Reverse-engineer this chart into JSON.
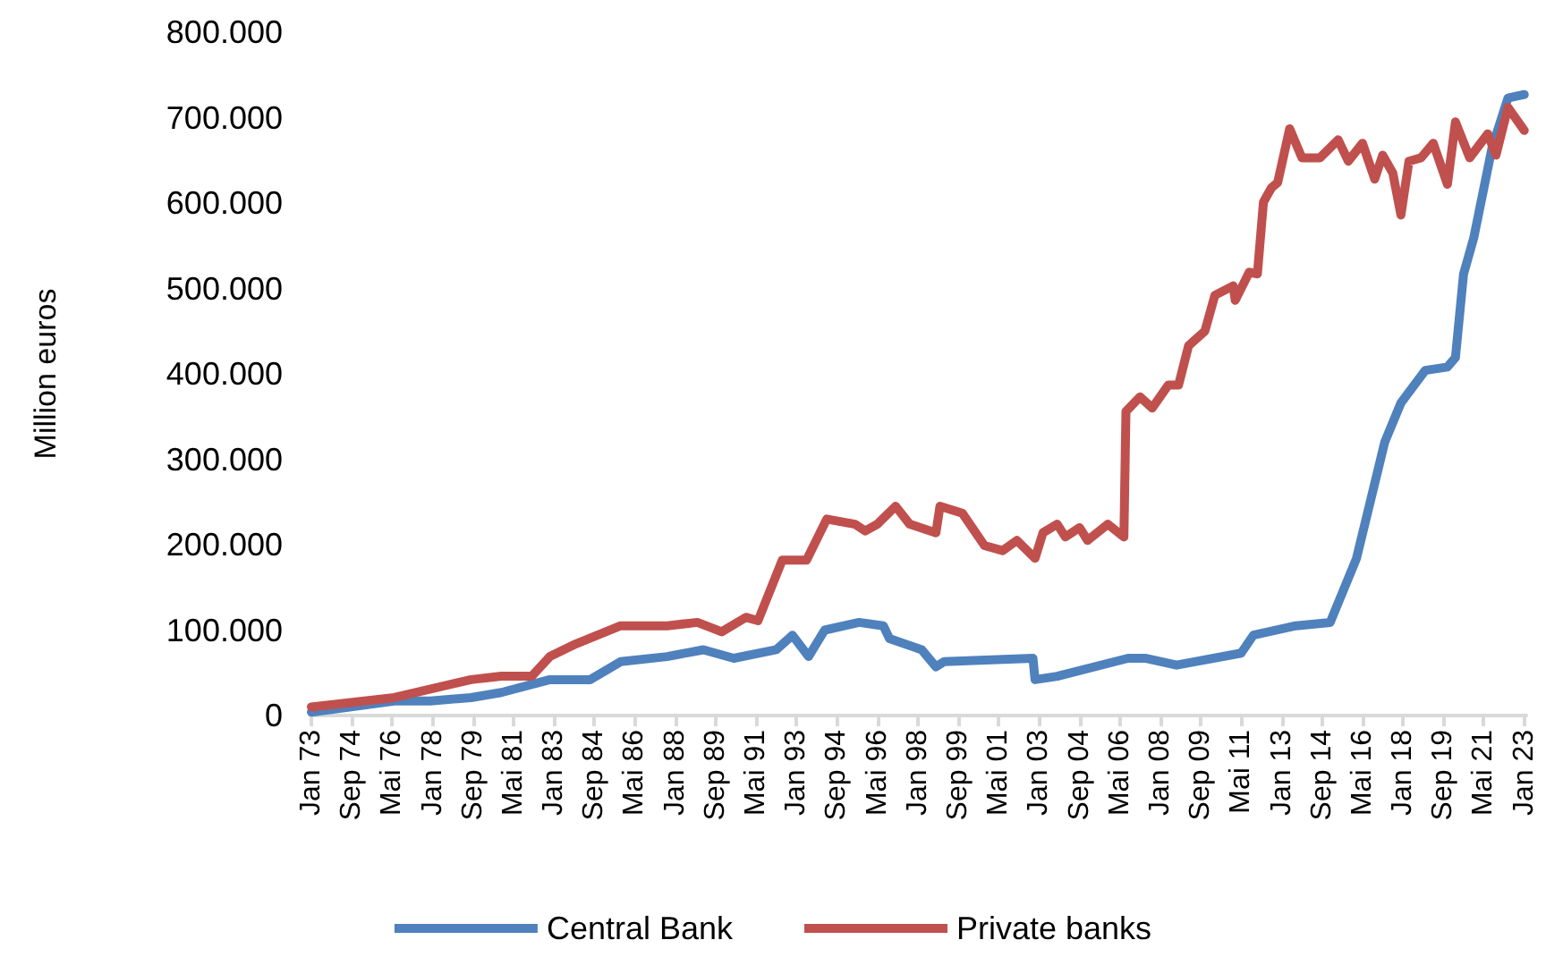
{
  "chart_data": {
    "type": "line",
    "ylabel": "Million euros",
    "legend": "bottom",
    "grid": false,
    "marker": "none",
    "line_style": "solid",
    "xlim": [
      "1973-01",
      "2023-02"
    ],
    "xticks": [
      {
        "value": "1973-01",
        "label": "Jan 73"
      },
      {
        "value": "1974-09",
        "label": "Sep 74"
      },
      {
        "value": "1976-05",
        "label": "Mai 76"
      },
      {
        "value": "1978-01",
        "label": "Jan 78"
      },
      {
        "value": "1979-09",
        "label": "Sep 79"
      },
      {
        "value": "1981-05",
        "label": "Mai 81"
      },
      {
        "value": "1983-01",
        "label": "Jan 83"
      },
      {
        "value": "1984-09",
        "label": "Sep 84"
      },
      {
        "value": "1986-05",
        "label": "Mai 86"
      },
      {
        "value": "1988-01",
        "label": "Jan 88"
      },
      {
        "value": "1989-09",
        "label": "Sep 89"
      },
      {
        "value": "1991-05",
        "label": "Mai 91"
      },
      {
        "value": "1993-01",
        "label": "Jan 93"
      },
      {
        "value": "1994-09",
        "label": "Sep 94"
      },
      {
        "value": "1996-05",
        "label": "Mai 96"
      },
      {
        "value": "1998-01",
        "label": "Jan 98"
      },
      {
        "value": "1999-09",
        "label": "Sep 99"
      },
      {
        "value": "2001-05",
        "label": "Mai 01"
      },
      {
        "value": "2003-01",
        "label": "Jan 03"
      },
      {
        "value": "2004-09",
        "label": "Sep 04"
      },
      {
        "value": "2006-05",
        "label": "Mai 06"
      },
      {
        "value": "2008-01",
        "label": "Jan 08"
      },
      {
        "value": "2009-09",
        "label": "Sep 09"
      },
      {
        "value": "2011-05",
        "label": "Mai 11"
      },
      {
        "value": "2013-01",
        "label": "Jan 13"
      },
      {
        "value": "2014-09",
        "label": "Sep 14"
      },
      {
        "value": "2016-05",
        "label": "Mai 16"
      },
      {
        "value": "2018-01",
        "label": "Jan 18"
      },
      {
        "value": "2019-09",
        "label": "Sep 19"
      },
      {
        "value": "2021-05",
        "label": "Mai 21"
      },
      {
        "value": "2023-01",
        "label": "Jan 23"
      }
    ],
    "ylim": [
      0,
      800000
    ],
    "yticks": [
      {
        "value": 0,
        "label": "0"
      },
      {
        "value": 100000,
        "label": "100.000"
      },
      {
        "value": 200000,
        "label": "200.000"
      },
      {
        "value": 300000,
        "label": "300.000"
      },
      {
        "value": 400000,
        "label": "400.000"
      },
      {
        "value": 500000,
        "label": "500.000"
      },
      {
        "value": 600000,
        "label": "600.000"
      },
      {
        "value": 700000,
        "label": "700.000"
      },
      {
        "value": 800000,
        "label": "800.000"
      }
    ],
    "series": [
      {
        "name": "Central Bank",
        "color": "#4f81bd",
        "x": [
          "1973-01",
          "1976-06",
          "1977-12",
          "1979-08",
          "1980-11",
          "1982-11",
          "1984-07",
          "1985-10",
          "1987-09",
          "1989-03",
          "1990-06",
          "1992-03",
          "1992-11",
          "1993-07",
          "1994-03",
          "1995-08",
          "1996-08",
          "1996-11",
          "1998-03",
          "1998-10",
          "1999-02",
          "2002-10",
          "2002-11",
          "2003-10",
          "2006-09",
          "2007-06",
          "2008-09",
          "2011-05",
          "2011-11",
          "2013-08",
          "2015-01",
          "2016-02",
          "2017-04",
          "2017-12",
          "2018-12",
          "2019-11",
          "2020-03",
          "2020-07",
          "2020-12",
          "2021-09",
          "2022-05",
          "2023-01"
        ],
        "values": [
          4000,
          17000,
          17000,
          21000,
          27000,
          42000,
          42000,
          63000,
          69000,
          77000,
          67000,
          77000,
          94000,
          69000,
          100000,
          109000,
          105000,
          90000,
          77000,
          57000,
          63000,
          67000,
          42000,
          46000,
          67000,
          67000,
          59000,
          73000,
          94000,
          105000,
          109000,
          184000,
          320000,
          366000,
          404000,
          408000,
          419000,
          517000,
          559000,
          664000,
          723000,
          727000
        ]
      },
      {
        "name": "Private banks",
        "color": "#c0504d",
        "x": [
          "1973-01",
          "1976-06",
          "1979-08",
          "1980-11",
          "1982-02",
          "1982-11",
          "1983-12",
          "1985-10",
          "1987-09",
          "1988-12",
          "1989-12",
          "1990-12",
          "1991-06",
          "1992-06",
          "1993-06",
          "1994-04",
          "1995-06",
          "1995-11",
          "1996-05",
          "1997-02",
          "1997-09",
          "1998-10",
          "1998-12",
          "1999-11",
          "2000-10",
          "2001-07",
          "2002-02",
          "2002-11",
          "2003-03",
          "2003-10",
          "2004-02",
          "2004-09",
          "2005-01",
          "2005-11",
          "2006-07",
          "2006-08",
          "2007-03",
          "2007-09",
          "2008-05",
          "2008-10",
          "2009-03",
          "2009-11",
          "2010-04",
          "2011-01",
          "2011-02",
          "2011-09",
          "2012-01",
          "2012-04",
          "2012-08",
          "2012-11",
          "2013-05",
          "2013-11",
          "2014-08",
          "2015-05",
          "2015-10",
          "2016-05",
          "2016-11",
          "2017-03",
          "2017-08",
          "2017-12",
          "2018-04",
          "2018-10",
          "2019-04",
          "2019-11",
          "2020-03",
          "2020-10",
          "2021-07",
          "2021-11",
          "2022-05",
          "2023-01"
        ],
        "values": [
          10000,
          21000,
          42000,
          46000,
          46000,
          69000,
          84000,
          105000,
          105000,
          109000,
          98000,
          115000,
          111000,
          182000,
          182000,
          230000,
          224000,
          216000,
          224000,
          245000,
          224000,
          214000,
          245000,
          237000,
          199000,
          193000,
          205000,
          184000,
          214000,
          224000,
          209000,
          220000,
          205000,
          224000,
          209000,
          356000,
          373000,
          360000,
          387000,
          387000,
          433000,
          450000,
          492000,
          503000,
          486000,
          519000,
          517000,
          601000,
          618000,
          624000,
          687000,
          653000,
          653000,
          674000,
          649000,
          670000,
          628000,
          656000,
          635000,
          586000,
          649000,
          653000,
          670000,
          622000,
          695000,
          653000,
          681000,
          656000,
          712000,
          685000
        ]
      }
    ]
  }
}
